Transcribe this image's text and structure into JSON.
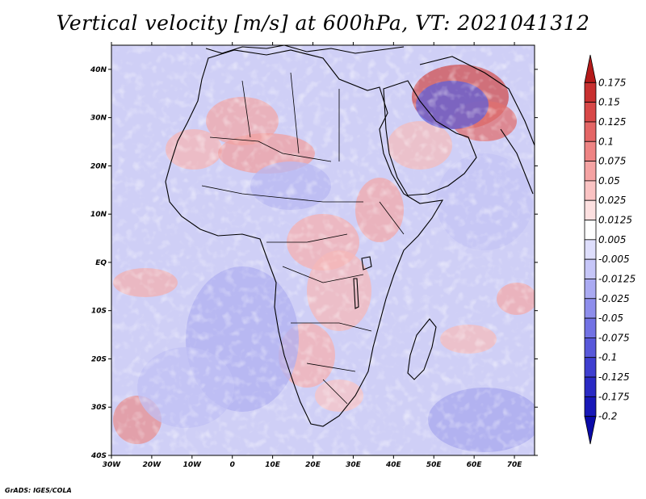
{
  "title": "Vertical velocity [m/s] at 600hPa, VT: 2021041312",
  "credit": "GrADS: IGES/COLA",
  "map": {
    "lon_ticks": [
      "30W",
      "20W",
      "10W",
      "0",
      "10E",
      "20E",
      "30E",
      "40E",
      "50E",
      "60E",
      "70E"
    ],
    "lat_ticks": [
      "40N",
      "30N",
      "20N",
      "10N",
      "EQ",
      "10S",
      "20S",
      "30S",
      "40S"
    ],
    "lon_range": [
      -30,
      75
    ],
    "lat_range": [
      -40,
      45
    ],
    "field": "Vertical velocity at 600hPa"
  },
  "colorbar": {
    "levels": [
      "0.175",
      "0.15",
      "0.125",
      "0.1",
      "0.075",
      "0.05",
      "0.025",
      "0.0125",
      "0.005",
      "-0.005",
      "-0.0125",
      "-0.025",
      "-0.05",
      "-0.075",
      "-0.1",
      "-0.125",
      "-0.175",
      "-0.2"
    ],
    "colors": [
      "#b41a1a",
      "#c83030",
      "#d84848",
      "#e46666",
      "#ee8484",
      "#f5a3a3",
      "#fac3c3",
      "#fde0e0",
      "#ffffff",
      "#dedefc",
      "#c6c6f8",
      "#aaaaf2",
      "#8e8eec",
      "#7272e4",
      "#5858da",
      "#3e3ed0",
      "#2a2ac4",
      "#1818b8",
      "#0a0aa8"
    ]
  }
}
